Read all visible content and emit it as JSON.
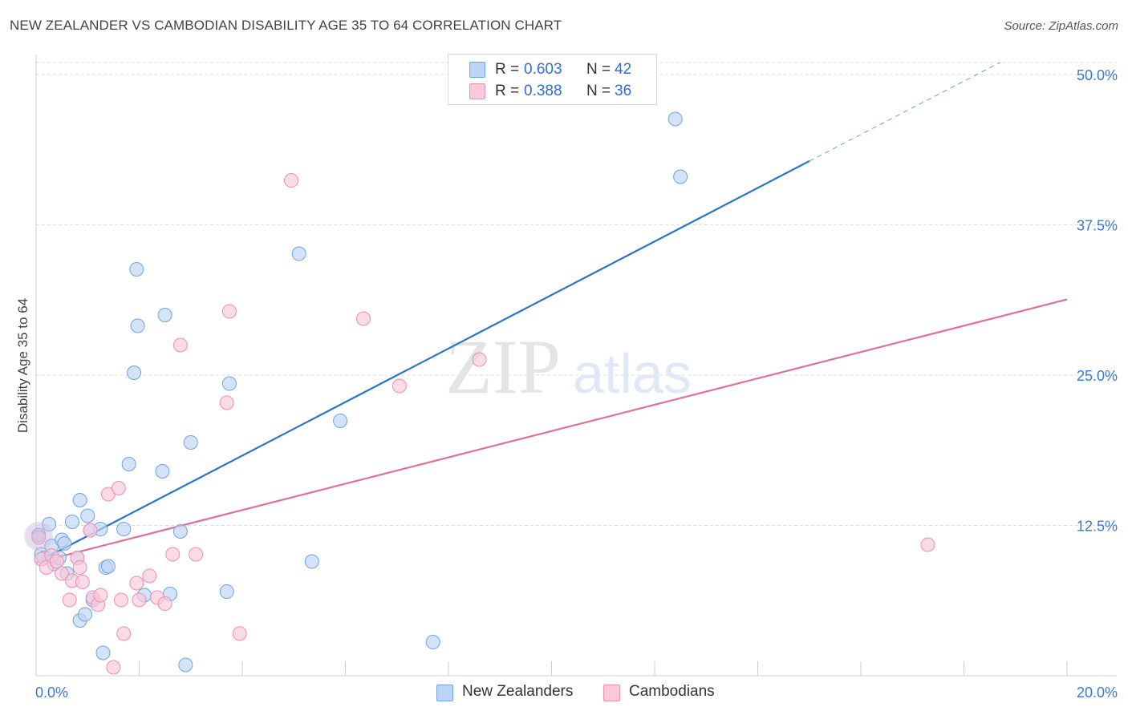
{
  "title": "NEW ZEALANDER VS CAMBODIAN DISABILITY AGE 35 TO 64 CORRELATION CHART",
  "source": "Source: ZipAtlas.com",
  "watermark": {
    "zip": "ZIP",
    "atlas": "atlas"
  },
  "legend": {
    "r_label": "R =",
    "n_label": "N =",
    "rows": [
      {
        "r": "0.603",
        "n": "42",
        "color": "#6fa3e6"
      },
      {
        "r": "0.388",
        "n": "36",
        "color": "#f08cb0"
      }
    ]
  },
  "colors": {
    "blue_fill": "#bdd4f5",
    "blue_stroke": "#6fa3e6",
    "blue_line": "#2b73cc",
    "pink_fill": "#f9c9d9",
    "pink_stroke": "#ea8fb2",
    "pink_line": "#e0709a",
    "axis_text": "#3a78d4",
    "grid": "#dddddd"
  },
  "chart_data": {
    "type": "scatter",
    "title": "NEW ZEALANDER VS CAMBODIAN DISABILITY AGE 35 TO 64 CORRELATION CHART",
    "xlabel": "",
    "ylabel": "Disability Age 35 to 64",
    "xlim": [
      0,
      20
    ],
    "ylim": [
      0,
      51
    ],
    "x_tick_labels": [
      "0.0%",
      "20.0%"
    ],
    "y_ticks": [
      12.5,
      25.0,
      37.5,
      50.0
    ],
    "y_tick_labels": [
      "12.5%",
      "25.0%",
      "37.5%",
      "50.0%"
    ],
    "grid": true,
    "legend_position": "bottom",
    "series": [
      {
        "name": "New Zealanders",
        "color": "#6fa3e6",
        "points": [
          [
            0.05,
            11.7
          ],
          [
            0.1,
            10.1
          ],
          [
            0.15,
            9.8
          ],
          [
            0.25,
            12.6
          ],
          [
            0.3,
            10.8
          ],
          [
            0.35,
            9.3
          ],
          [
            0.45,
            9.8
          ],
          [
            0.5,
            11.3
          ],
          [
            0.55,
            11.0
          ],
          [
            0.6,
            8.5
          ],
          [
            0.7,
            12.8
          ],
          [
            0.8,
            9.8
          ],
          [
            0.85,
            4.6
          ],
          [
            0.85,
            14.6
          ],
          [
            0.95,
            5.1
          ],
          [
            1.0,
            13.3
          ],
          [
            1.05,
            12.1
          ],
          [
            1.1,
            6.3
          ],
          [
            1.25,
            12.2
          ],
          [
            1.3,
            1.9
          ],
          [
            1.35,
            9.0
          ],
          [
            1.4,
            9.1
          ],
          [
            1.7,
            12.2
          ],
          [
            1.8,
            17.6
          ],
          [
            1.9,
            25.2
          ],
          [
            1.95,
            33.8
          ],
          [
            1.97,
            29.1
          ],
          [
            2.1,
            6.7
          ],
          [
            2.5,
            30.0
          ],
          [
            2.45,
            17.0
          ],
          [
            2.6,
            6.8
          ],
          [
            2.8,
            12.0
          ],
          [
            2.9,
            0.9
          ],
          [
            3.0,
            19.4
          ],
          [
            3.7,
            7.0
          ],
          [
            3.75,
            24.3
          ],
          [
            5.1,
            35.1
          ],
          [
            5.35,
            9.5
          ],
          [
            5.9,
            21.2
          ],
          [
            7.7,
            2.8
          ],
          [
            12.4,
            46.3
          ],
          [
            12.5,
            41.5
          ]
        ]
      },
      {
        "name": "Cambodians",
        "color": "#ea8fb2",
        "points": [
          [
            0.05,
            11.5
          ],
          [
            0.1,
            9.7
          ],
          [
            0.2,
            9.0
          ],
          [
            0.3,
            10.0
          ],
          [
            0.4,
            9.5
          ],
          [
            0.5,
            8.5
          ],
          [
            0.65,
            6.3
          ],
          [
            0.7,
            7.9
          ],
          [
            0.8,
            9.8
          ],
          [
            0.85,
            9.0
          ],
          [
            0.9,
            7.8
          ],
          [
            1.05,
            12.1
          ],
          [
            1.1,
            6.5
          ],
          [
            1.2,
            5.9
          ],
          [
            1.25,
            6.7
          ],
          [
            1.4,
            15.1
          ],
          [
            1.5,
            0.7
          ],
          [
            1.6,
            15.6
          ],
          [
            1.65,
            6.3
          ],
          [
            1.7,
            3.5
          ],
          [
            1.95,
            7.7
          ],
          [
            2.0,
            6.3
          ],
          [
            2.2,
            8.3
          ],
          [
            2.35,
            6.5
          ],
          [
            2.5,
            6.0
          ],
          [
            2.65,
            10.1
          ],
          [
            2.8,
            27.5
          ],
          [
            3.1,
            10.1
          ],
          [
            3.7,
            22.7
          ],
          [
            3.75,
            30.3
          ],
          [
            3.95,
            3.5
          ],
          [
            4.95,
            41.2
          ],
          [
            6.35,
            29.7
          ],
          [
            7.05,
            24.1
          ],
          [
            8.6,
            26.3
          ],
          [
            17.3,
            10.9
          ]
        ]
      }
    ],
    "trendlines": [
      {
        "series": "New Zealanders",
        "solid": [
          [
            0.0,
            9.4
          ],
          [
            15.0,
            42.8
          ]
        ],
        "dashed": [
          [
            15.0,
            42.8
          ],
          [
            18.7,
            51.0
          ]
        ]
      },
      {
        "series": "Cambodians",
        "solid": [
          [
            0.0,
            9.4
          ],
          [
            20.0,
            31.3
          ]
        ]
      }
    ]
  }
}
